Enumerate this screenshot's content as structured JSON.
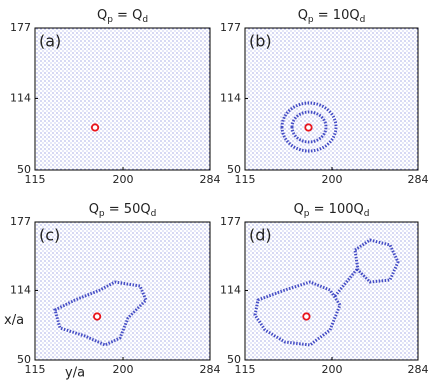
{
  "chart_data": [
    {
      "type": "scatter",
      "panel_label": "(a)",
      "title": [
        {
          "text": "Q"
        },
        {
          "text": "p",
          "sub": true
        },
        {
          "text": " = Q"
        },
        {
          "text": "d",
          "sub": true
        }
      ],
      "x": [
        173
      ],
      "y": [
        88
      ],
      "color": "#e8141c",
      "xlim": [
        115,
        284
      ],
      "xticks": [
        115,
        200,
        284
      ],
      "ylim": [
        50,
        177
      ],
      "yticks": [
        50,
        114,
        177
      ]
    },
    {
      "type": "scatter",
      "panel_label": "(b)",
      "title": [
        {
          "text": "Q"
        },
        {
          "text": "p",
          "sub": true
        },
        {
          "text": " = 10Q"
        },
        {
          "text": "d",
          "sub": true
        }
      ],
      "x": [
        177
      ],
      "y": [
        88
      ],
      "color": "#e8141c",
      "xlim": [
        115,
        284
      ],
      "xticks": [
        115,
        200,
        284
      ],
      "ylim": [
        50,
        177
      ],
      "yticks": [
        50,
        114,
        177
      ]
    },
    {
      "type": "scatter",
      "panel_label": "(c)",
      "title": [
        {
          "text": "Q"
        },
        {
          "text": "p",
          "sub": true
        },
        {
          "text": " = 50Q"
        },
        {
          "text": "d",
          "sub": true
        }
      ],
      "x": [
        175
      ],
      "y": [
        90
      ],
      "color": "#e8141c",
      "xlabel": "y/a",
      "ylabel": "x/a",
      "xlim": [
        115,
        284
      ],
      "xticks": [
        115,
        200,
        284
      ],
      "ylim": [
        50,
        177
      ],
      "yticks": [
        50,
        114,
        177
      ]
    },
    {
      "type": "scatter",
      "panel_label": "(d)",
      "title": [
        {
          "text": "Q"
        },
        {
          "text": "p",
          "sub": true
        },
        {
          "text": " = 100Q"
        },
        {
          "text": "d",
          "sub": true
        }
      ],
      "x": [
        175
      ],
      "y": [
        90
      ],
      "color": "#e8141c",
      "xlim": [
        115,
        284
      ],
      "xticks": [
        115,
        200,
        284
      ],
      "ylim": [
        50,
        177
      ],
      "yticks": [
        50,
        114,
        177
      ]
    }
  ]
}
